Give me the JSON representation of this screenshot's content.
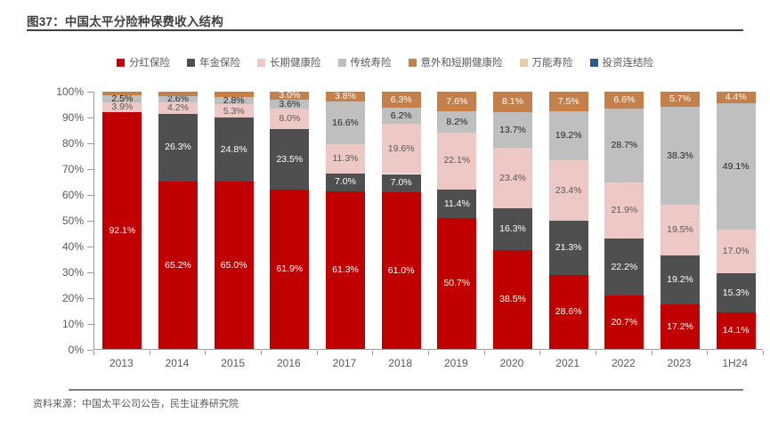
{
  "header": {
    "title": "图37：中国太平分险种保费收入结构"
  },
  "footer": {
    "source": "资料来源：中国太平公司公告，民生证券研究院"
  },
  "colors": {
    "title_text": "#3f3f3f",
    "title_rule": "#404040",
    "axis": "#9b9b9b",
    "axis_text": "#595959",
    "footer_rule": "#7f7f7f",
    "source_text": "#595959"
  },
  "chart_data": {
    "type": "bar",
    "stacked": true,
    "percent_stacked": true,
    "title": "中国太平分险种保费收入结构",
    "xlabel": "",
    "ylabel": "",
    "ylim": [
      0,
      100
    ],
    "grid": false,
    "legend_position": "top",
    "y_ticks": [
      "100%",
      "90%",
      "80%",
      "70%",
      "60%",
      "50%",
      "40%",
      "30%",
      "20%",
      "10%",
      "0%"
    ],
    "categories": [
      "2013",
      "2014",
      "2015",
      "2016",
      "2017",
      "2018",
      "2019",
      "2020",
      "2021",
      "2022",
      "2023",
      "1H24"
    ],
    "series": [
      {
        "name": "分红保险",
        "color": "#c00000",
        "label_color": "#ffffff",
        "values": [
          92.1,
          65.2,
          65.0,
          61.9,
          61.3,
          61.0,
          50.7,
          38.5,
          28.6,
          20.7,
          17.2,
          14.1
        ],
        "labels": [
          "92.1%",
          "65.2%",
          "65.0%",
          "61.9%",
          "61.3%",
          "61.0%",
          "50.7%",
          "38.5%",
          "28.6%",
          "20.7%",
          "17.2%",
          "14.1%"
        ]
      },
      {
        "name": "年金保险",
        "color": "#4f4f4f",
        "label_color": "#ffffff",
        "values": [
          0,
          26.3,
          24.8,
          23.5,
          7.0,
          7.0,
          11.4,
          16.3,
          21.3,
          22.2,
          19.2,
          15.3
        ],
        "labels": [
          "",
          "26.3%",
          "24.8%",
          "23.5%",
          "7.0%",
          "7.0%",
          "11.4%",
          "16.3%",
          "21.3%",
          "22.2%",
          "19.2%",
          "15.3%"
        ]
      },
      {
        "name": "长期健康险",
        "color": "#edc8c5",
        "label_color": "#595959",
        "values": [
          3.9,
          4.2,
          5.3,
          8.0,
          11.3,
          19.6,
          22.1,
          23.4,
          23.4,
          21.9,
          19.5,
          17.0
        ],
        "labels": [
          "3.9%",
          "4.2%",
          "5.3%",
          "8.0%",
          "11.3%",
          "19.6%",
          "22.1%",
          "23.4%",
          "23.4%",
          "21.9%",
          "19.5%",
          "17.0%"
        ]
      },
      {
        "name": "传统寿险",
        "color": "#bfbfbf",
        "label_color": "#262626",
        "values": [
          2.5,
          2.6,
          2.8,
          3.6,
          16.6,
          6.2,
          8.2,
          13.7,
          19.2,
          28.7,
          38.3,
          49.1
        ],
        "labels": [
          "2.5%",
          "2.6%",
          "2.8%",
          "3.6%",
          "16.6%",
          "6.2%",
          "8.2%",
          "13.7%",
          "19.2%",
          "28.7%",
          "38.3%",
          "49.1%"
        ]
      },
      {
        "name": "意外和短期健康险",
        "color": "#c4804a",
        "label_color": "#ffffff",
        "values": [
          1.5,
          1.7,
          2.1,
          3.0,
          3.8,
          6.3,
          7.6,
          8.1,
          7.5,
          6.6,
          5.7,
          4.4
        ],
        "labels": [
          "",
          "",
          "",
          "3.0%",
          "3.8%",
          "6.3%",
          "7.6%",
          "8.1%",
          "7.5%",
          "6.6%",
          "5.7%",
          "4.4%"
        ]
      },
      {
        "name": "万能寿险",
        "color": "#e5cda9",
        "label_color": "#595959",
        "values": [
          0,
          0,
          0,
          0,
          0,
          0,
          0,
          0,
          0,
          0,
          0,
          0
        ],
        "labels": [
          "",
          "",
          "",
          "",
          "",
          "",
          "",
          "",
          "",
          "",
          "",
          ""
        ]
      },
      {
        "name": "投资连结险",
        "color": "#2e5c8a",
        "label_color": "#ffffff",
        "values": [
          0,
          0,
          0,
          0,
          0,
          0,
          0,
          0,
          0,
          0,
          0,
          0
        ],
        "labels": [
          "",
          "",
          "",
          "",
          "",
          "",
          "",
          "",
          "",
          "",
          "",
          ""
        ]
      }
    ]
  }
}
